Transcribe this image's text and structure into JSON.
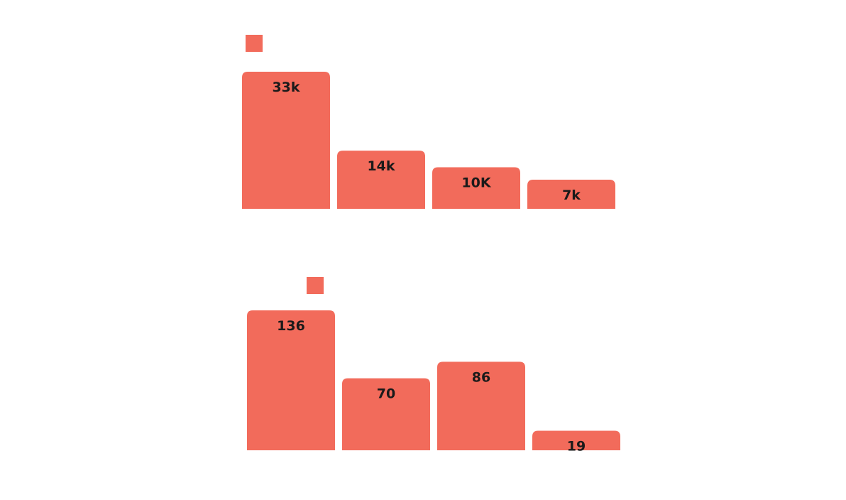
{
  "colors": {
    "bar": "#f26b5b",
    "label": "#1a1a1a",
    "background": "#ffffff"
  },
  "chart_data": [
    {
      "type": "bar",
      "title": "",
      "xlabel": "",
      "ylabel": "",
      "categories": [
        "",
        "",
        "",
        ""
      ],
      "values": [
        33000,
        14000,
        10000,
        7000
      ],
      "data_labels": [
        "33k",
        "14k",
        "10K",
        "7k"
      ],
      "ylim": [
        0,
        33000
      ],
      "grid": false,
      "legend": "top-left"
    },
    {
      "type": "bar",
      "title": "",
      "xlabel": "",
      "ylabel": "",
      "categories": [
        "",
        "",
        "",
        ""
      ],
      "values": [
        136,
        70,
        86,
        19
      ],
      "data_labels": [
        "136",
        "70",
        "86",
        "19"
      ],
      "ylim": [
        0,
        136
      ],
      "grid": false,
      "legend": "top-left"
    }
  ]
}
